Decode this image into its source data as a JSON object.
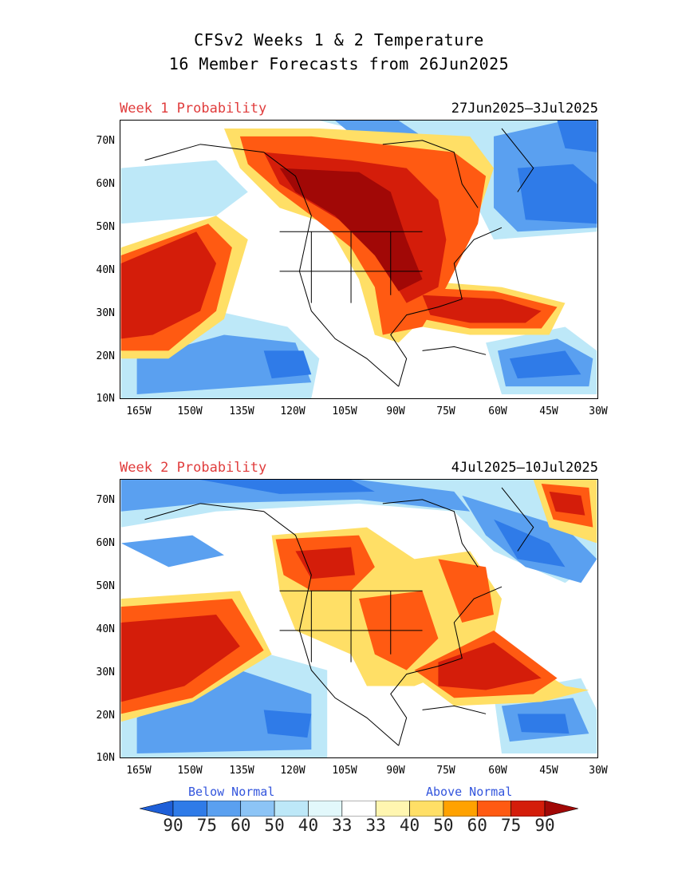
{
  "title_line1": "CFSv2 Weeks 1 & 2 Temperature",
  "title_line2": "16 Member Forecasts from 26Jun2025",
  "panels": [
    {
      "label": "Week 1 Probability",
      "dates": "27Jun2025–3Jul2025"
    },
    {
      "label": "Week 2 Probability",
      "dates": "4Jul2025–10Jul2025"
    }
  ],
  "lat_ticks": [
    "70N",
    "60N",
    "50N",
    "40N",
    "30N",
    "20N",
    "10N"
  ],
  "lon_ticks": [
    "165W",
    "150W",
    "135W",
    "120W",
    "105W",
    "90W",
    "75W",
    "60W",
    "45W",
    "30W"
  ],
  "legend": {
    "below_label": "Below Normal",
    "above_label": "Above Normal",
    "values": [
      "90",
      "75",
      "60",
      "50",
      "40",
      "33",
      "33",
      "40",
      "50",
      "60",
      "75",
      "90"
    ],
    "colors": [
      "#1e5fd8",
      "#2f7be8",
      "#5aa0f0",
      "#8cc4f6",
      "#bde8f8",
      "#e2f8fb",
      "#ffffff",
      "#fff6b0",
      "#ffdf66",
      "#ffa200",
      "#ff5a12",
      "#d41d0a",
      "#a10806"
    ]
  }
}
